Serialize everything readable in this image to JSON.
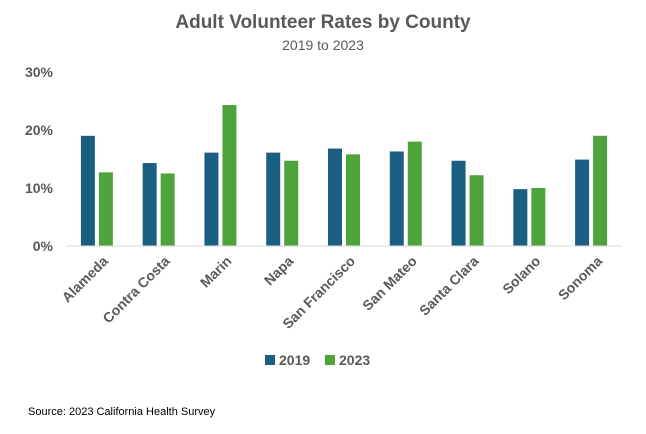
{
  "chart_data": {
    "type": "bar",
    "title": "Adult Volunteer Rates by County",
    "subtitle": "2019 to 2023",
    "xlabel": "",
    "ylabel": "",
    "ylim": [
      0,
      30
    ],
    "y_ticks": [
      0,
      10,
      20,
      30
    ],
    "y_tick_labels": [
      "0%",
      "10%",
      "20%",
      "30%"
    ],
    "value_suffix": "%",
    "grid": false,
    "legend_position": "bottom",
    "categories": [
      "Alameda",
      "Contra Costa",
      "Marin",
      "Napa",
      "San Francisco",
      "San Mateo",
      "Santa Clara",
      "Solano",
      "Sonoma"
    ],
    "series": [
      {
        "name": "2019",
        "color": "#1a5e82",
        "values": [
          19.0,
          14.3,
          16.1,
          16.1,
          16.8,
          16.3,
          14.7,
          9.8,
          14.9
        ]
      },
      {
        "name": "2023",
        "color": "#4ea43a",
        "values": [
          12.7,
          12.5,
          24.3,
          14.7,
          15.8,
          18.0,
          12.2,
          10.0,
          19.0
        ]
      }
    ]
  },
  "source": "Source: 2023 California Health Survey"
}
